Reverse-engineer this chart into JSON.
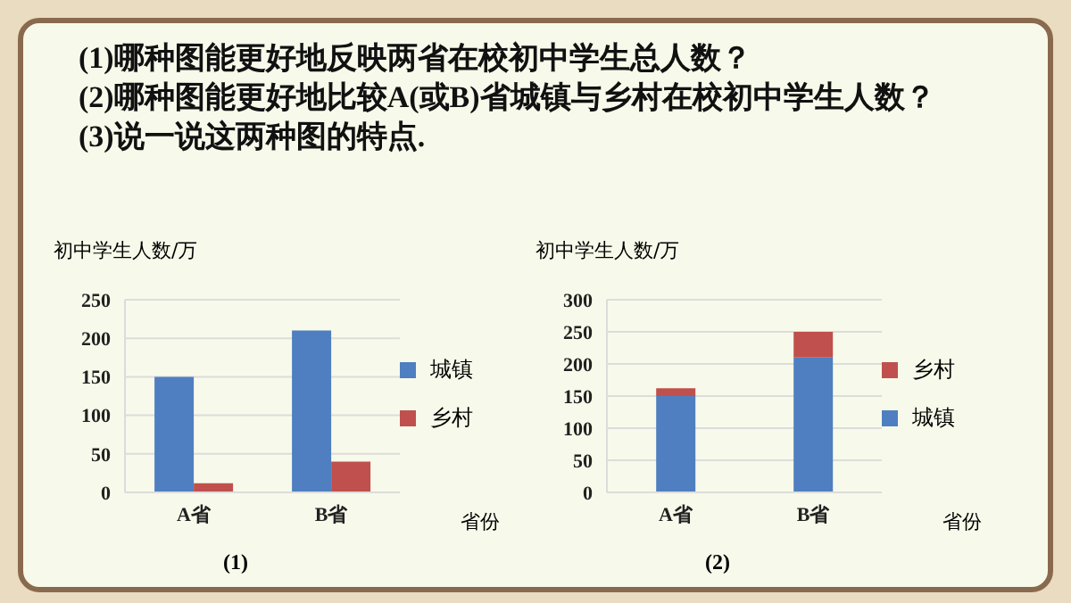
{
  "chart_data": [
    {
      "type": "other",
      "annotations": [
        "(1)哪种图能更好地反映两省在校初中学生总人数？",
        "(2)哪种图能更好地比较A(或B)省城镇与乡村在校初中学生人数？",
        "(3)说一说这两种图的特点."
      ]
    },
    {
      "type": "bar",
      "categories": [
        "A省",
        "B省"
      ],
      "series": [
        {
          "name": "城镇",
          "color": "#4f7fc0",
          "values": [
            150,
            210
          ]
        },
        {
          "name": "乡村",
          "color": "#c0504d",
          "values": [
            12,
            40
          ]
        }
      ],
      "ylim": [
        0,
        250
      ],
      "yticks": [
        0,
        50,
        100,
        150,
        200,
        250
      ],
      "grid": "y",
      "legend": "right",
      "ylabel": "初中学生人数/万",
      "xlabel": "省份",
      "annotations": [
        "(1)"
      ]
    },
    {
      "type": "bar",
      "stacked": true,
      "categories": [
        "A省",
        "B省"
      ],
      "series": [
        {
          "name": "城镇",
          "color": "#4f7fc0",
          "values": [
            150,
            210
          ]
        },
        {
          "name": "乡村",
          "color": "#c0504d",
          "values": [
            12,
            40
          ]
        }
      ],
      "ylim": [
        0,
        300
      ],
      "yticks": [
        0,
        50,
        100,
        150,
        200,
        250,
        300
      ],
      "grid": "y",
      "legend": "right",
      "ylabel": "初中学生人数/万",
      "xlabel": "省份",
      "annotations": [
        "(2)"
      ]
    }
  ]
}
